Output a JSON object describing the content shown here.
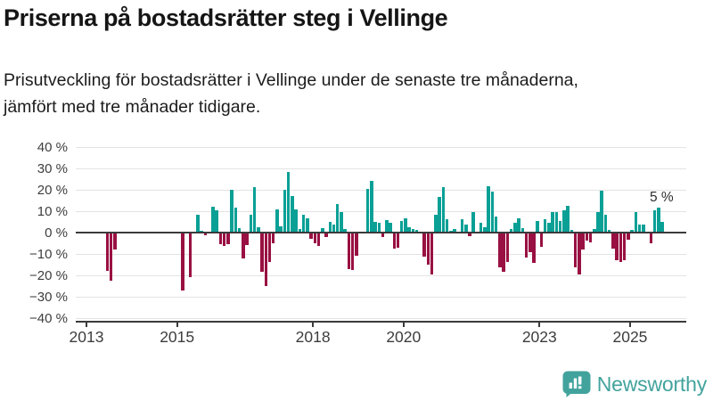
{
  "header": {
    "title": "Priserna på bostadsrätter steg i Vellinge",
    "subtitle": "Prisutveckling för bostadsrätter i Vellinge under de senaste tre månaderna, jämfört med tre månader tidigare."
  },
  "footer": {
    "brand": "Newsworthy",
    "icon": "newsworthy-speech-bubble-barchart-icon"
  },
  "colors": {
    "positive": "#0aa096",
    "negative": "#991042",
    "grid": "#e3e3e3",
    "axis": "#3b3b3b",
    "brand": "#42a39d",
    "text": "#1c1c1c"
  },
  "chart_data": {
    "type": "bar",
    "title": "Priserna på bostadsrätter steg i Vellinge",
    "subtitle": "Prisutveckling för bostadsrätter i Vellinge under de senaste tre månaderna, jämfört med tre månader tidigare.",
    "unit": "%",
    "xlabel": "",
    "ylabel": "",
    "ylim": [
      -40,
      40
    ],
    "xlim": [
      2012.76,
      2026.24
    ],
    "grid": true,
    "legend": false,
    "y_ticks": [
      {
        "value": 40,
        "label": "40 %"
      },
      {
        "value": 30,
        "label": "30 %"
      },
      {
        "value": 20,
        "label": "20 %"
      },
      {
        "value": 10,
        "label": "10 %"
      },
      {
        "value": 0,
        "label": "0 %"
      },
      {
        "value": -10,
        "label": "−10 %"
      },
      {
        "value": -20,
        "label": "−20 %"
      },
      {
        "value": -30,
        "label": "−30 %"
      },
      {
        "value": -40,
        "label": "−40 %"
      }
    ],
    "x_ticks": [
      {
        "value": 2013,
        "label": "2013"
      },
      {
        "value": 2015,
        "label": "2015"
      },
      {
        "value": 2018,
        "label": "2018"
      },
      {
        "value": 2020,
        "label": "2020"
      },
      {
        "value": 2023,
        "label": "2023"
      },
      {
        "value": 2025,
        "label": "2025"
      }
    ],
    "latest": {
      "month": "2025-09",
      "value": 5,
      "label": "5 %"
    },
    "points": [
      [
        "2013-06",
        -17.5
      ],
      [
        "2013-07",
        -22
      ],
      [
        "2013-08",
        -7.5
      ],
      [
        "2015-02",
        -26.5
      ],
      [
        "2015-04",
        -20.5
      ],
      [
        "2015-06",
        8.5
      ],
      [
        "2015-07",
        1
      ],
      [
        "2015-08",
        -1
      ],
      [
        "2015-10",
        12.3
      ],
      [
        "2015-11",
        10.4
      ],
      [
        "2015-12",
        -5
      ],
      [
        "2016-01",
        -6
      ],
      [
        "2016-02",
        -5
      ],
      [
        "2016-03",
        20
      ],
      [
        "2016-04",
        11.6
      ],
      [
        "2016-05",
        2
      ],
      [
        "2016-06",
        -11.5
      ],
      [
        "2016-07",
        -5.3
      ],
      [
        "2016-08",
        8.3
      ],
      [
        "2016-09",
        21.3
      ],
      [
        "2016-10",
        2.5
      ],
      [
        "2016-11",
        -18
      ],
      [
        "2016-12",
        -24.5
      ],
      [
        "2017-01",
        -13.5
      ],
      [
        "2017-02",
        -4.5
      ],
      [
        "2017-03",
        11
      ],
      [
        "2017-04",
        3
      ],
      [
        "2017-05",
        20
      ],
      [
        "2017-06",
        28.5
      ],
      [
        "2017-07",
        17
      ],
      [
        "2017-08",
        11
      ],
      [
        "2017-09",
        1.6
      ],
      [
        "2017-10",
        8.5
      ],
      [
        "2017-11",
        6.7
      ],
      [
        "2017-12",
        -2.5
      ],
      [
        "2018-01",
        -4.6
      ],
      [
        "2018-02",
        -6
      ],
      [
        "2018-03",
        2.1
      ],
      [
        "2018-04",
        -1.8
      ],
      [
        "2018-05",
        4.9
      ],
      [
        "2018-06",
        3.9
      ],
      [
        "2018-07",
        13.2
      ],
      [
        "2018-08",
        9.7
      ],
      [
        "2018-09",
        1.8
      ],
      [
        "2018-10",
        -16.5
      ],
      [
        "2018-11",
        -17.2
      ],
      [
        "2018-12",
        -10.5
      ],
      [
        "2019-03",
        20.6
      ],
      [
        "2019-04",
        24
      ],
      [
        "2019-05",
        4.9
      ],
      [
        "2019-06",
        4.4
      ],
      [
        "2019-07",
        -1.6
      ],
      [
        "2019-08",
        5.8
      ],
      [
        "2019-09",
        4.4
      ],
      [
        "2019-10",
        -7.2
      ],
      [
        "2019-11",
        -6.7
      ],
      [
        "2019-12",
        5.3
      ],
      [
        "2020-01",
        6.7
      ],
      [
        "2020-02",
        2.5
      ],
      [
        "2020-03",
        1.7
      ],
      [
        "2020-04",
        1.1
      ],
      [
        "2020-06",
        -11
      ],
      [
        "2020-07",
        -14.5
      ],
      [
        "2020-08",
        -19
      ],
      [
        "2020-09",
        8.4
      ],
      [
        "2020-10",
        16.7
      ],
      [
        "2020-11",
        21.1
      ],
      [
        "2020-12",
        6.3
      ],
      [
        "2021-01",
        0.7
      ],
      [
        "2021-02",
        1.7
      ],
      [
        "2021-04",
        6.3
      ],
      [
        "2021-05",
        3.7
      ],
      [
        "2021-06",
        -1.4
      ],
      [
        "2021-07",
        9.4
      ],
      [
        "2021-09",
        4.4
      ],
      [
        "2021-10",
        2.5
      ],
      [
        "2021-11",
        21.5
      ],
      [
        "2021-12",
        19
      ],
      [
        "2022-01",
        7.5
      ],
      [
        "2022-02",
        -16
      ],
      [
        "2022-03",
        -17.8
      ],
      [
        "2022-04",
        -13.5
      ],
      [
        "2022-05",
        1.5
      ],
      [
        "2022-06",
        4.4
      ],
      [
        "2022-07",
        6.7
      ],
      [
        "2022-08",
        1.9
      ],
      [
        "2022-09",
        -11.4
      ],
      [
        "2022-10",
        -8.6
      ],
      [
        "2022-11",
        -13.6
      ],
      [
        "2022-12",
        5.3
      ],
      [
        "2023-01",
        -6.3
      ],
      [
        "2023-02",
        6.3
      ],
      [
        "2023-03",
        4.4
      ],
      [
        "2023-04",
        9.4
      ],
      [
        "2023-05",
        9.7
      ],
      [
        "2023-06",
        5.3
      ],
      [
        "2023-07",
        10.4
      ],
      [
        "2023-08",
        12.5
      ],
      [
        "2023-09",
        1.1
      ],
      [
        "2023-10",
        -16
      ],
      [
        "2023-11",
        -19.2
      ],
      [
        "2023-12",
        -7.6
      ],
      [
        "2024-01",
        -3.5
      ],
      [
        "2024-02",
        -4.2
      ],
      [
        "2024-03",
        1.7
      ],
      [
        "2024-04",
        9.4
      ],
      [
        "2024-05",
        19.7
      ],
      [
        "2024-06",
        8.3
      ],
      [
        "2024-07",
        1.4
      ],
      [
        "2024-08",
        -7.2
      ],
      [
        "2024-09",
        -12.5
      ],
      [
        "2024-10",
        -13.2
      ],
      [
        "2024-11",
        -12.5
      ],
      [
        "2024-12",
        -3
      ],
      [
        "2025-01",
        1.2
      ],
      [
        "2025-02",
        9.8
      ],
      [
        "2025-03",
        3.6
      ],
      [
        "2025-04",
        3.6
      ],
      [
        "2025-06",
        -4.4
      ],
      [
        "2025-07",
        10.5
      ],
      [
        "2025-08",
        11.5
      ],
      [
        "2025-09",
        5
      ]
    ]
  }
}
